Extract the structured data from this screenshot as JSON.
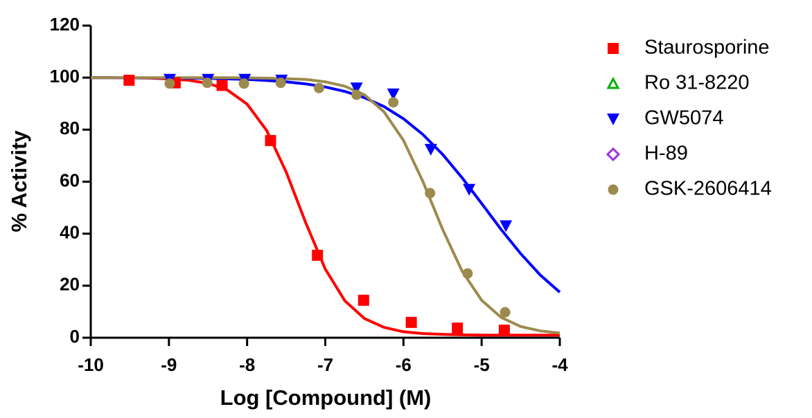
{
  "chart_data": {
    "type": "scatter",
    "x_label": "Log [Compound] (M)",
    "y_label": "% Activity",
    "xlim": [
      -10,
      -4
    ],
    "xticks": [
      -10,
      -9,
      -8,
      -7,
      -6,
      -5,
      -4
    ],
    "ylim": [
      0,
      120
    ],
    "yticks": [
      0,
      20,
      40,
      60,
      80,
      100,
      120
    ],
    "legend": "right",
    "curve_x": [
      -10,
      -9.75,
      -9.5,
      -9.25,
      -9,
      -8.75,
      -8.5,
      -8.25,
      -8,
      -7.75,
      -7.5,
      -7.25,
      -7,
      -6.75,
      -6.5,
      -6.25,
      -6,
      -5.75,
      -5.5,
      -5.25,
      -5,
      -4.75,
      -4.5,
      -4.25,
      -4
    ],
    "series": [
      {
        "name": "Staurosporine",
        "color": "#ff0000",
        "marker": "square",
        "x": [
          -9.51,
          -8.92,
          -8.32,
          -7.7,
          -7.1,
          -6.51,
          -5.9,
          -5.31,
          -4.71
        ],
        "values": [
          99,
          98,
          97,
          75.8,
          31.7,
          14.4,
          5.9,
          3.7,
          2.9
        ],
        "curve": [
          100,
          100,
          99.9,
          99.8,
          99.5,
          99,
          97.8,
          95.2,
          89.8,
          79.7,
          63.7,
          44.2,
          26.4,
          14.2,
          7.4,
          4,
          2.3,
          1.6,
          1.3,
          1.1,
          1,
          1,
          1,
          1,
          1
        ]
      },
      {
        "name": "Ro 31-8220",
        "color": "#00b000",
        "marker": "triangle-open",
        "x": [],
        "values": []
      },
      {
        "name": "GW5074",
        "color": "#0000ff",
        "marker": "triangle-down",
        "x": [
          -8.99,
          -8.5,
          -8.03,
          -7.56,
          -6.6,
          -6.13,
          -5.65,
          -5.16,
          -4.69
        ],
        "values": [
          99.3,
          99.3,
          99.3,
          99,
          96,
          93.7,
          72.4,
          57,
          43
        ],
        "curve": [
          100,
          100,
          99.9,
          99.9,
          99.9,
          99.8,
          99.7,
          99.5,
          99.3,
          98.9,
          98.4,
          97.6,
          96.4,
          94.7,
          92.3,
          88.9,
          84.2,
          78.1,
          70.5,
          61.5,
          51.6,
          41.6,
          32.3,
          24.1,
          17.5
        ]
      },
      {
        "name": "H-89",
        "color": "#a030e0",
        "marker": "diamond-open",
        "x": [],
        "values": []
      },
      {
        "name": "GSK-2606414",
        "color": "#9c8a4e",
        "marker": "circle",
        "x": [
          -8.99,
          -8.51,
          -8.04,
          -7.57,
          -7.08,
          -6.6,
          -6.13,
          -5.66,
          -5.18,
          -4.7
        ],
        "values": [
          97.7,
          98,
          97.7,
          98,
          96,
          93.4,
          90.5,
          55.6,
          24.7,
          9.8
        ],
        "curve": [
          100,
          100,
          100,
          100,
          100,
          100,
          100,
          100,
          99.9,
          99.8,
          99.6,
          99.3,
          98.4,
          96.7,
          93.4,
          86.9,
          75.9,
          60,
          41.7,
          25.6,
          14.4,
          7.8,
          4.3,
          2.6,
          1.8
        ]
      }
    ]
  }
}
